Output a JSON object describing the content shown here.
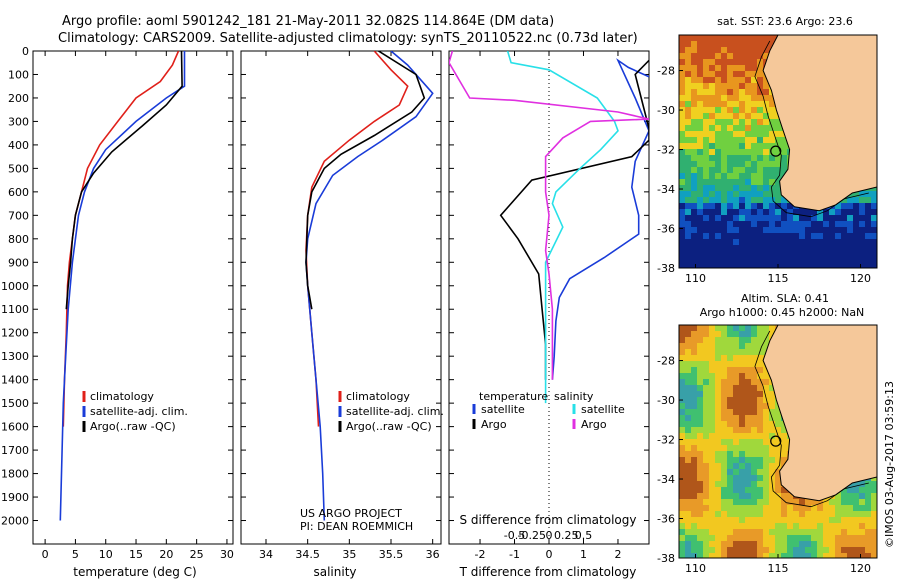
{
  "header": {
    "line1": "Argo profile: aoml 5901242_181 21-May-2011 32.082S 114.864E (DM data)",
    "line2": "Climatology: CARS2009. Satellite-adjusted climatology: synTS_20110522.nc (0.73d later)"
  },
  "colors": {
    "climatology": "#e0201a",
    "satellite": "#1a3cd8",
    "argo": "#000000",
    "salinity": "#28e0e8",
    "argo_s": "#e030e0"
  },
  "chart_data": [
    {
      "type": "line",
      "id": "temperature",
      "xlabel": "temperature (deg C)",
      "ylabel": "",
      "xlim": [
        -2,
        31
      ],
      "ylim": [
        2100,
        0
      ],
      "xticks": [
        0,
        5,
        10,
        15,
        20,
        25,
        30
      ],
      "yticks": [
        0,
        100,
        200,
        300,
        400,
        500,
        600,
        700,
        800,
        900,
        1000,
        1100,
        1200,
        1300,
        1400,
        1500,
        1600,
        1700,
        1800,
        1900,
        2000
      ],
      "legend": [
        "climatology",
        "satellite-adj. clim.",
        "Argo(..raw -QC)"
      ],
      "series": [
        {
          "name": "climatology",
          "color": "#e0201a",
          "points": [
            [
              22,
              0
            ],
            [
              21,
              60
            ],
            [
              19,
              130
            ],
            [
              15,
              200
            ],
            [
              12,
              300
            ],
            [
              9,
              400
            ],
            [
              7,
              500
            ],
            [
              6,
              600
            ],
            [
              5,
              700
            ],
            [
              4.5,
              800
            ],
            [
              4,
              900
            ],
            [
              3.7,
              1000
            ],
            [
              3.5,
              1200
            ],
            [
              3.2,
              1400
            ],
            [
              3,
              1600
            ]
          ]
        },
        {
          "name": "satellite-adj. clim.",
          "color": "#1a3cd8",
          "points": [
            [
              23,
              0
            ],
            [
              23,
              150
            ],
            [
              20,
              200
            ],
            [
              15,
              300
            ],
            [
              10,
              420
            ],
            [
              8,
              500
            ],
            [
              6.5,
              600
            ],
            [
              5.5,
              700
            ],
            [
              4.5,
              900
            ],
            [
              3.8,
              1100
            ],
            [
              3.4,
              1300
            ],
            [
              3,
              1500
            ],
            [
              2.8,
              1700
            ],
            [
              2.6,
              1900
            ],
            [
              2.5,
              2000
            ]
          ]
        },
        {
          "name": "Argo(..raw -QC)",
          "color": "#000000",
          "points": [
            [
              22.5,
              0
            ],
            [
              22.6,
              150
            ],
            [
              20,
              230
            ],
            [
              16,
              320
            ],
            [
              11,
              430
            ],
            [
              8,
              520
            ],
            [
              6,
              600
            ],
            [
              5,
              700
            ],
            [
              4.5,
              800
            ],
            [
              4.2,
              900
            ],
            [
              3.8,
              1000
            ],
            [
              3.5,
              1100
            ]
          ]
        }
      ]
    },
    {
      "type": "line",
      "id": "salinity",
      "xlabel": "salinity",
      "ylabel": "",
      "xlim": [
        33.7,
        36.1
      ],
      "ylim": [
        2100,
        0
      ],
      "xticks": [
        34,
        34.5,
        35,
        35.5,
        36
      ],
      "legend": [
        "climatology",
        "satellite-adj. clim.",
        "Argo(..raw -QC)"
      ],
      "series": [
        {
          "name": "climatology",
          "color": "#e0201a",
          "points": [
            [
              35.3,
              0
            ],
            [
              35.5,
              80
            ],
            [
              35.7,
              150
            ],
            [
              35.6,
              230
            ],
            [
              35.3,
              300
            ],
            [
              35,
              380
            ],
            [
              34.7,
              470
            ],
            [
              34.55,
              580
            ],
            [
              34.5,
              700
            ],
            [
              34.48,
              850
            ],
            [
              34.5,
              1000
            ],
            [
              34.55,
              1200
            ],
            [
              34.6,
              1400
            ],
            [
              34.63,
              1600
            ]
          ]
        },
        {
          "name": "satellite-adj. clim.",
          "color": "#1a3cd8",
          "points": [
            [
              35.5,
              0
            ],
            [
              35.7,
              60
            ],
            [
              36,
              180
            ],
            [
              35.8,
              280
            ],
            [
              35.4,
              380
            ],
            [
              35.1,
              450
            ],
            [
              34.8,
              530
            ],
            [
              34.6,
              650
            ],
            [
              34.5,
              800
            ],
            [
              34.48,
              900
            ],
            [
              34.5,
              1000
            ],
            [
              34.55,
              1200
            ],
            [
              34.6,
              1400
            ],
            [
              34.65,
              1600
            ],
            [
              34.68,
              1800
            ],
            [
              34.7,
              2000
            ]
          ]
        },
        {
          "name": "Argo(..raw -QC)",
          "color": "#000000",
          "points": [
            [
              35.35,
              0
            ],
            [
              35.8,
              100
            ],
            [
              35.9,
              200
            ],
            [
              35.75,
              260
            ],
            [
              35.3,
              360
            ],
            [
              34.9,
              440
            ],
            [
              34.7,
              500
            ],
            [
              34.55,
              600
            ],
            [
              34.5,
              700
            ],
            [
              34.48,
              900
            ],
            [
              34.5,
              1000
            ],
            [
              34.55,
              1100
            ]
          ]
        }
      ]
    },
    {
      "type": "line",
      "id": "difference",
      "xlabel": "T difference from climatology",
      "top_label": "S difference from climatology",
      "xlim": [
        -2.9,
        2.9
      ],
      "ylim": [
        2100,
        0
      ],
      "xticks": [
        -2,
        -1,
        0,
        1,
        2
      ],
      "s_ticks": [
        "-0.5",
        "-0.25",
        "0",
        "0.25",
        "0.5"
      ],
      "legend_titles": [
        "temperature",
        "salinity"
      ],
      "legend": [
        "satellite",
        "Argo",
        "satellite",
        "Argo"
      ],
      "series": [
        {
          "name": "satellite",
          "color": "#1a3cd8",
          "points": [
            [
              2.9,
              110
            ],
            [
              2.3,
              70
            ],
            [
              2,
              40
            ],
            [
              2.5,
              200
            ],
            [
              2.9,
              340
            ],
            [
              2.5,
              470
            ],
            [
              2.4,
              580
            ],
            [
              2.6,
              700
            ],
            [
              2.6,
              780
            ],
            [
              1.6,
              880
            ],
            [
              0.6,
              970
            ],
            [
              0.3,
              1050
            ],
            [
              0.2,
              1150
            ],
            [
              0.15,
              1300
            ],
            [
              0.1,
              1400
            ]
          ]
        },
        {
          "name": "Argo",
          "color": "#000000",
          "points": [
            [
              2.9,
              40
            ],
            [
              2.5,
              100
            ],
            [
              2.9,
              330
            ],
            [
              2.9,
              380
            ],
            [
              2.4,
              450
            ],
            [
              -0.5,
              550
            ],
            [
              -1.4,
              700
            ],
            [
              -0.9,
              800
            ],
            [
              -0.3,
              950
            ],
            [
              -0.2,
              1100
            ],
            [
              -0.1,
              1250
            ],
            [
              -0.1,
              1400
            ]
          ]
        },
        {
          "name": "satellite",
          "color": "#28e0e8",
          "points": [
            [
              -1.2,
              0
            ],
            [
              -1.1,
              50
            ],
            [
              0,
              80
            ],
            [
              1.4,
              200
            ],
            [
              1.9,
              300
            ],
            [
              2,
              340
            ],
            [
              1.5,
              420
            ],
            [
              0.9,
              500
            ],
            [
              0.2,
              600
            ],
            [
              0.1,
              650
            ],
            [
              0.4,
              750
            ],
            [
              -0.1,
              900
            ],
            [
              -0.1,
              1050
            ],
            [
              -0.1,
              1300
            ],
            [
              -0.1,
              1500
            ]
          ]
        },
        {
          "name": "Argo",
          "color": "#e030e0",
          "points": [
            [
              -2.8,
              0
            ],
            [
              -2.9,
              50
            ],
            [
              -2.3,
              200
            ],
            [
              -1,
              210
            ],
            [
              2,
              260
            ],
            [
              2.9,
              290
            ],
            [
              1.2,
              300
            ],
            [
              0.4,
              370
            ],
            [
              -0.1,
              450
            ],
            [
              -0.1,
              600
            ],
            [
              0,
              700
            ],
            [
              -0.1,
              850
            ],
            [
              0,
              950
            ],
            [
              0.1,
              1100
            ],
            [
              0.1,
              1400
            ]
          ]
        }
      ]
    },
    {
      "type": "heatmap",
      "id": "sst_map",
      "title": "sat. SST: 23.6 Argo: 23.6",
      "xticks": [
        110,
        115,
        120
      ],
      "yticks": [
        -28,
        -30,
        -32,
        -34,
        -36,
        -38
      ],
      "xlim": [
        109,
        121
      ],
      "ylim": [
        -38,
        -26.2
      ],
      "marker": [
        114.864,
        -32.082
      ]
    },
    {
      "type": "heatmap",
      "id": "sla_map",
      "title1": "Altim. SLA: 0.41",
      "title2": "Argo h1000: 0.45 h2000: NaN",
      "xticks": [
        110,
        115,
        120
      ],
      "yticks": [
        -28,
        -30,
        -32,
        -34,
        -36,
        -38
      ],
      "xlim": [
        109,
        121
      ],
      "ylim": [
        -38,
        -26.2
      ],
      "marker": [
        114.864,
        -32.082
      ]
    }
  ],
  "notes": {
    "project_line1": "US ARGO PROJECT",
    "project_line2": "PI: DEAN ROEMMICH",
    "credit": "©IMOS 03-Aug-2017 03:59:13"
  }
}
